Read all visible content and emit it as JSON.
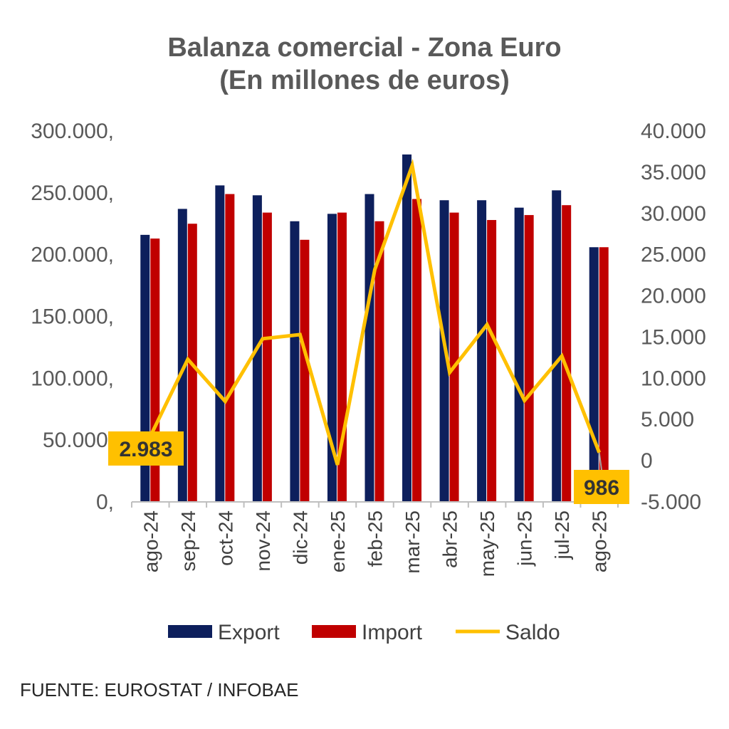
{
  "chart_data": {
    "type": "bar",
    "title": "Balanza comercial - Zona Euro",
    "subtitle": "(En millones de euros)",
    "categories": [
      "ago-24",
      "sep-24",
      "oct-24",
      "nov-24",
      "dic-24",
      "ene-25",
      "feb-25",
      "mar-25",
      "abr-25",
      "may-25",
      "jun-25",
      "jul-25",
      "ago-25"
    ],
    "series": [
      {
        "name": "Export",
        "type": "bar",
        "axis": "left",
        "color": "#0D1F5C",
        "values": [
          216000,
          237000,
          256000,
          248000,
          227000,
          233000,
          249000,
          281000,
          244000,
          244000,
          238000,
          252000,
          206000
        ]
      },
      {
        "name": "Import",
        "type": "bar",
        "axis": "left",
        "color": "#C00000",
        "values": [
          213000,
          225000,
          249000,
          234000,
          212000,
          234000,
          227000,
          245000,
          234000,
          228000,
          232000,
          240000,
          206000
        ]
      },
      {
        "name": "Saldo",
        "type": "line",
        "axis": "right",
        "color": "#FFC000",
        "values": [
          2983,
          12300,
          7200,
          14800,
          15300,
          -500,
          23200,
          35800,
          10700,
          16500,
          7300,
          12700,
          986
        ]
      }
    ],
    "left_axis": {
      "ylim": [
        0,
        300000
      ],
      "ticks": [
        "0,",
        "50.000,",
        "100.000,",
        "150.000,",
        "200.000,",
        "250.000,",
        "300.000,"
      ]
    },
    "right_axis": {
      "ylim": [
        -5000,
        40000
      ],
      "ticks": [
        "-5.000",
        "0",
        "5.000",
        "10.000",
        "15.000",
        "20.000",
        "25.000",
        "30.000",
        "35.000",
        "40.000"
      ]
    },
    "annotations": [
      {
        "label": "2.983",
        "category": "ago-24",
        "series": "Saldo"
      },
      {
        "label": "986",
        "category": "ago-25",
        "series": "Saldo"
      }
    ],
    "legend_position": "bottom",
    "grid": false
  },
  "source": "FUENTE: EUROSTAT / INFOBAE",
  "colors": {
    "callout_fill": "#FFC000",
    "axis_text": "#595959",
    "title": "#595959"
  }
}
